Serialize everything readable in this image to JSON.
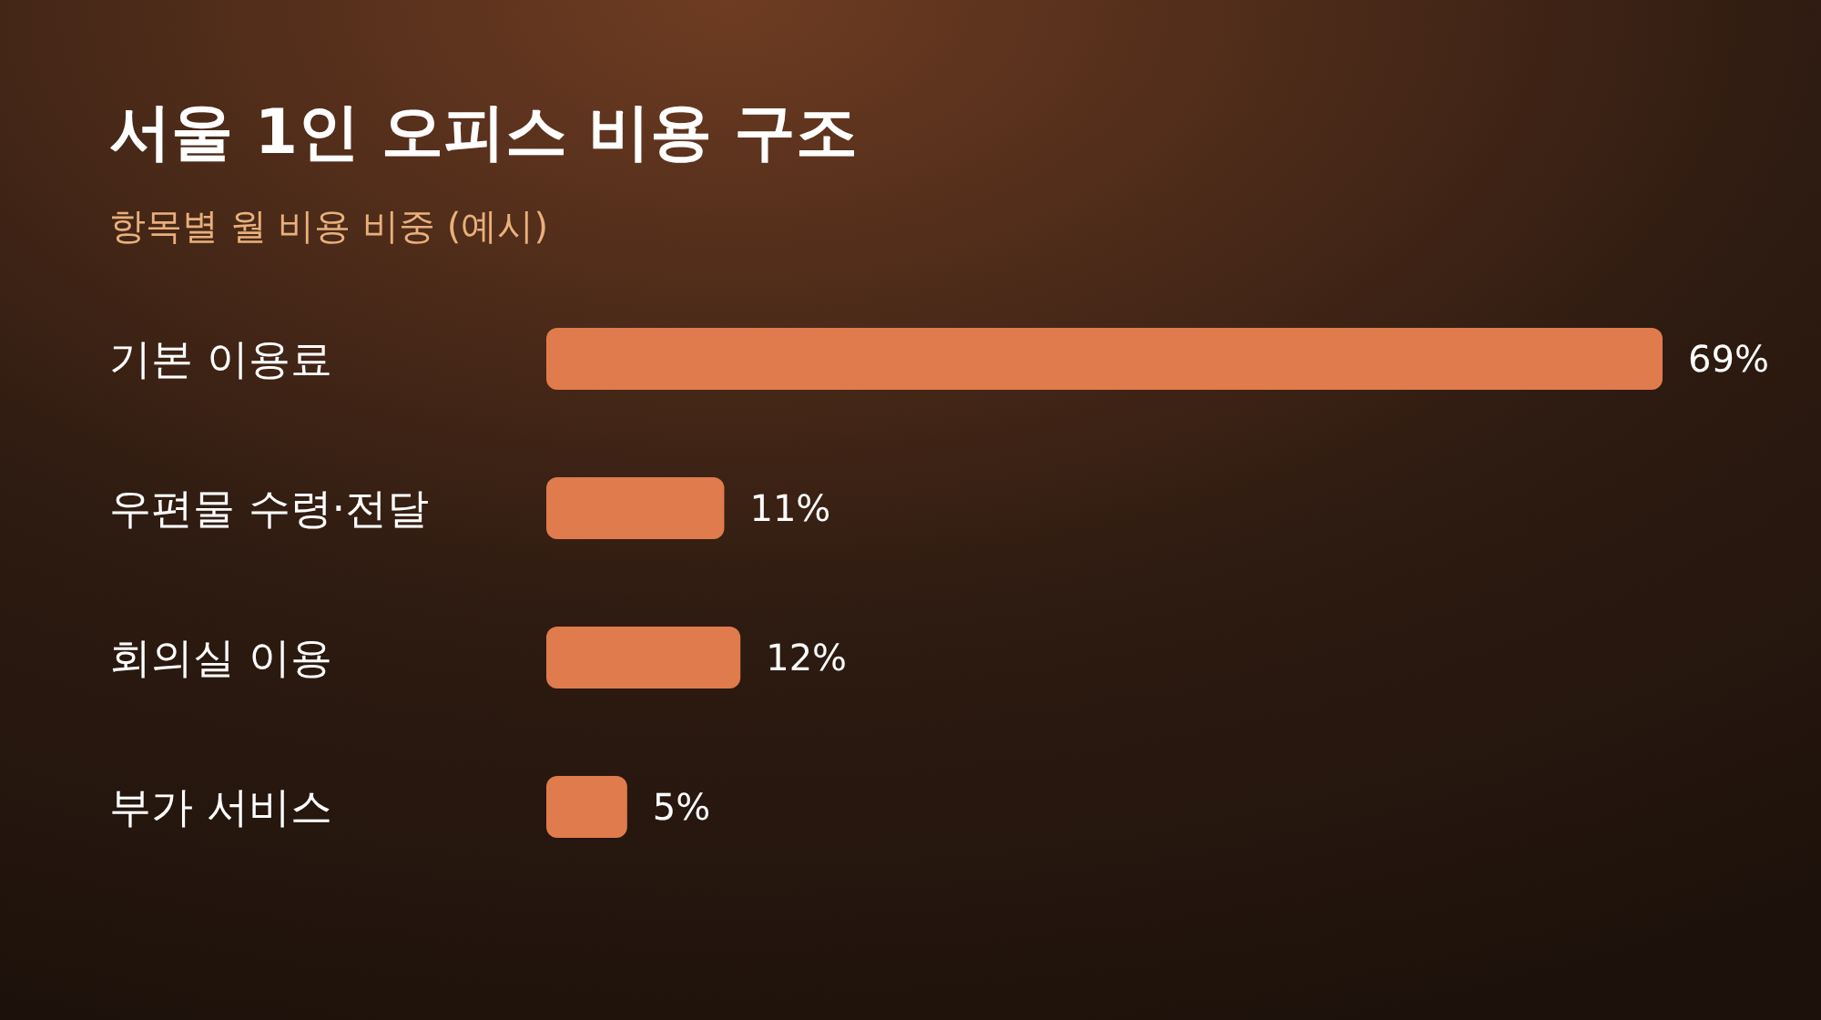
{
  "chart_data": {
    "type": "bar",
    "orientation": "horizontal",
    "title": "서울 1인 오피스 비용 구조",
    "subtitle": "항목별 월 비용 비중 (예시)",
    "categories": [
      "기본 이용료",
      "우편물 수령·전달",
      "회의실 이용",
      "부가 서비스"
    ],
    "values": [
      69,
      11,
      12,
      5
    ],
    "value_labels": [
      "69%",
      "11%",
      "12%",
      "5%"
    ],
    "color": "#df7b4c"
  }
}
